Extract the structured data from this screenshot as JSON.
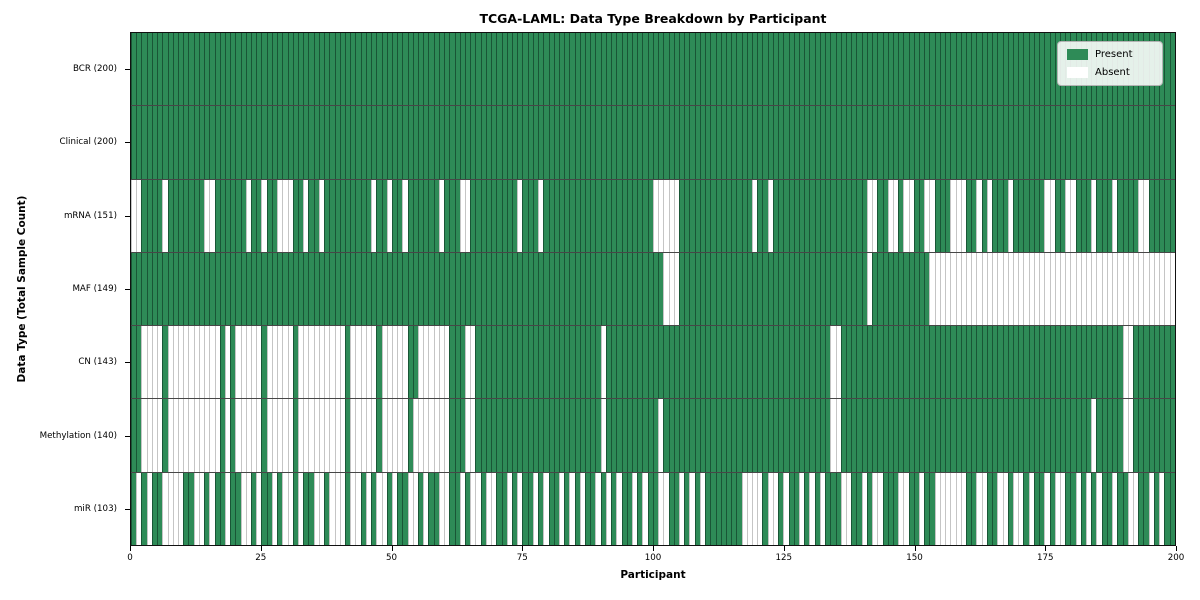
{
  "chart_data": {
    "type": "heatmap",
    "title": "TCGA-LAML: Data Type Breakdown by Participant",
    "xlabel": "Participant",
    "ylabel": "Data Type (Total Sample Count)",
    "n_columns": 200,
    "x_ticks": [
      0,
      25,
      50,
      75,
      100,
      125,
      150,
      175,
      200
    ],
    "colors": {
      "present": "#2e8b57",
      "absent": "#ffffff"
    },
    "legend": {
      "present": "Present",
      "absent": "Absent"
    },
    "cell_values": {
      "present": 1,
      "absent": 0
    },
    "rows": [
      {
        "label": "BCR (200)",
        "present_count": 200,
        "absent_runs": []
      },
      {
        "label": "Clinical (200)",
        "present_count": 200,
        "absent_runs": []
      },
      {
        "label": "mRNA (151)",
        "present_count": 151,
        "absent_runs": [
          [
            0,
            1
          ],
          [
            6,
            6
          ],
          [
            14,
            15
          ],
          [
            22,
            22
          ],
          [
            25,
            25
          ],
          [
            28,
            30
          ],
          [
            33,
            33
          ],
          [
            36,
            36
          ],
          [
            46,
            46
          ],
          [
            49,
            49
          ],
          [
            52,
            52
          ],
          [
            59,
            59
          ],
          [
            63,
            64
          ],
          [
            74,
            74
          ],
          [
            78,
            78
          ],
          [
            100,
            104
          ],
          [
            119,
            119
          ],
          [
            122,
            122
          ],
          [
            141,
            142
          ],
          [
            145,
            146
          ],
          [
            148,
            149
          ],
          [
            152,
            153
          ],
          [
            157,
            159
          ],
          [
            162,
            162
          ],
          [
            164,
            164
          ],
          [
            168,
            168
          ],
          [
            175,
            176
          ],
          [
            179,
            180
          ],
          [
            184,
            184
          ],
          [
            188,
            188
          ],
          [
            193,
            194
          ]
        ]
      },
      {
        "label": "MAF (149)",
        "present_count": 149,
        "absent_runs": [
          [
            102,
            104
          ],
          [
            141,
            141
          ],
          [
            153,
            199
          ]
        ]
      },
      {
        "label": "CN (143)",
        "present_count": 143,
        "absent_runs": [
          [
            2,
            5
          ],
          [
            7,
            16
          ],
          [
            18,
            18
          ],
          [
            20,
            24
          ],
          [
            26,
            30
          ],
          [
            32,
            40
          ],
          [
            42,
            46
          ],
          [
            48,
            52
          ],
          [
            55,
            60
          ],
          [
            64,
            65
          ],
          [
            90,
            90
          ],
          [
            134,
            135
          ],
          [
            190,
            191
          ]
        ]
      },
      {
        "label": "Methylation (140)",
        "present_count": 140,
        "absent_runs": [
          [
            2,
            5
          ],
          [
            7,
            16
          ],
          [
            18,
            18
          ],
          [
            20,
            24
          ],
          [
            26,
            30
          ],
          [
            32,
            40
          ],
          [
            42,
            46
          ],
          [
            48,
            52
          ],
          [
            54,
            60
          ],
          [
            64,
            65
          ],
          [
            90,
            90
          ],
          [
            101,
            101
          ],
          [
            134,
            135
          ],
          [
            184,
            184
          ],
          [
            190,
            191
          ]
        ]
      },
      {
        "label": "miR (103)",
        "present_count": 103,
        "absent_runs": [
          [
            1,
            1
          ],
          [
            3,
            3
          ],
          [
            6,
            9
          ],
          [
            12,
            13
          ],
          [
            15,
            15
          ],
          [
            18,
            18
          ],
          [
            21,
            22
          ],
          [
            24,
            24
          ],
          [
            27,
            27
          ],
          [
            29,
            30
          ],
          [
            32,
            32
          ],
          [
            35,
            36
          ],
          [
            38,
            40
          ],
          [
            42,
            43
          ],
          [
            45,
            45
          ],
          [
            47,
            48
          ],
          [
            50,
            50
          ],
          [
            53,
            54
          ],
          [
            56,
            56
          ],
          [
            59,
            60
          ],
          [
            63,
            63
          ],
          [
            65,
            66
          ],
          [
            68,
            69
          ],
          [
            72,
            72
          ],
          [
            74,
            74
          ],
          [
            77,
            77
          ],
          [
            79,
            79
          ],
          [
            82,
            82
          ],
          [
            84,
            84
          ],
          [
            86,
            86
          ],
          [
            89,
            89
          ],
          [
            91,
            91
          ],
          [
            93,
            93
          ],
          [
            96,
            96
          ],
          [
            98,
            98
          ],
          [
            101,
            102
          ],
          [
            105,
            105
          ],
          [
            107,
            107
          ],
          [
            109,
            109
          ],
          [
            117,
            120
          ],
          [
            122,
            123
          ],
          [
            125,
            125
          ],
          [
            128,
            128
          ],
          [
            130,
            130
          ],
          [
            132,
            132
          ],
          [
            136,
            137
          ],
          [
            140,
            140
          ],
          [
            142,
            143
          ],
          [
            147,
            148
          ],
          [
            151,
            151
          ],
          [
            154,
            159
          ],
          [
            162,
            163
          ],
          [
            166,
            167
          ],
          [
            169,
            170
          ],
          [
            172,
            172
          ],
          [
            175,
            175
          ],
          [
            177,
            178
          ],
          [
            181,
            181
          ],
          [
            183,
            183
          ],
          [
            185,
            185
          ],
          [
            188,
            188
          ],
          [
            191,
            192
          ],
          [
            195,
            195
          ],
          [
            197,
            197
          ]
        ]
      }
    ]
  }
}
